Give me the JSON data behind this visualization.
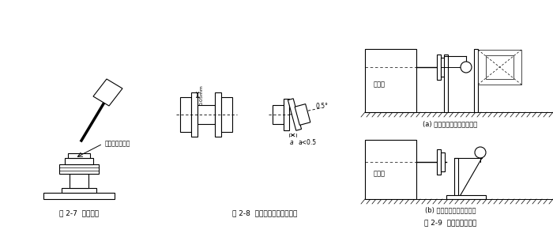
{
  "bg_color": "#ffffff",
  "fig_width": 7.0,
  "fig_height": 3.0,
  "dpi": 100,
  "fig27_caption": "图 2-7  注意事项",
  "fig28_caption": "图 2-8  联轴器之间的安装精度",
  "fig29_caption": "图 2-9  安装精度的检查",
  "label_copper": "此处应垫一铜棒",
  "label_dim": "0.05mm",
  "label_angle": "0.5°",
  "label_gap": "a<0.5",
  "label_a": "a",
  "label_yuandongji_a": "原动机",
  "label_yuandongji_b": "原动机",
  "label_sub_a": "(a) 用百分表检查联轴器端面",
  "label_sub_b": "(b) 用百分表检查支座端面",
  "line_color": "#000000",
  "text_color": "#000000"
}
